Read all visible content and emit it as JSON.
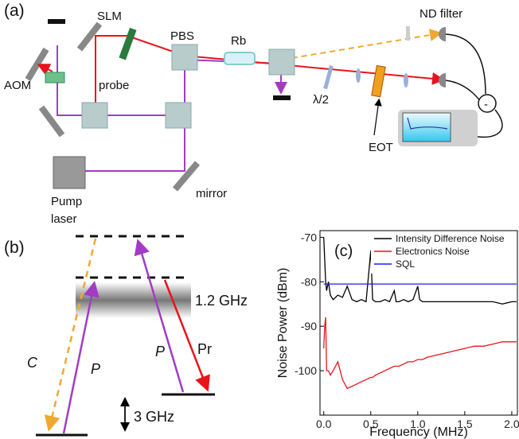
{
  "panel_a": {
    "tag": "(a)",
    "slm": "SLM",
    "pbs": "PBS",
    "rb": "Rb",
    "nd_filter": "ND filter",
    "aom": "AOM",
    "probe": "probe",
    "half_wave": "λ/2",
    "eot": "EOT",
    "pump": "Pump",
    "laser": "laser",
    "mirror": "mirror",
    "minus": "-"
  },
  "panel_b": {
    "tag": "(b)",
    "splitting": "1.2 GHz",
    "conjugate": "C",
    "pump_1": "P",
    "pump_2": "P",
    "probe": "Pr",
    "gap": "3 GHz"
  },
  "chart_data": {
    "type": "line",
    "annotation": "(c)",
    "x_label": "Frequency (MHz)",
    "y_label": "Noise Power (dBm)",
    "xlim": [
      -0.04,
      2.06
    ],
    "ylim": [
      -110,
      -68.5
    ],
    "xticks": [
      {
        "value": 0,
        "label": "0.0"
      },
      {
        "value": 0.5,
        "label": "0.5"
      },
      {
        "value": 1,
        "label": "1.0"
      },
      {
        "value": 1.5,
        "label": "1.5"
      },
      {
        "value": 2,
        "label": "2.0"
      }
    ],
    "yticks": [
      -70,
      -80,
      -90,
      -100
    ],
    "legend": "upper right",
    "x": [
      0,
      0.01,
      0.02,
      0.03,
      0.05,
      0.07,
      0.1,
      0.15,
      0.2,
      0.25,
      0.3,
      0.35,
      0.4,
      0.45,
      0.5,
      0.52,
      0.55,
      0.6,
      0.65,
      0.7,
      0.75,
      0.77,
      0.8,
      0.85,
      0.9,
      0.95,
      1.0,
      1.02,
      1.05,
      1.1,
      1.2,
      1.3,
      1.4,
      1.5,
      1.6,
      1.7,
      1.8,
      1.9,
      2.0,
      2.05
    ],
    "series": [
      {
        "name": "Intensity Difference Noise",
        "color": "#000000",
        "values": [
          -70,
          -75,
          -80,
          -82,
          -80,
          -83,
          -84,
          -83,
          -83.5,
          -81,
          -84,
          -84.5,
          -84,
          -84.5,
          -73,
          -84,
          -84.5,
          -84.5,
          -84,
          -84.5,
          -82,
          -84.5,
          -84.5,
          -84,
          -84.5,
          -84,
          -81,
          -84,
          -84.5,
          -84.5,
          -84.5,
          -84.5,
          -84.5,
          -84.5,
          -84.5,
          -84.5,
          -84.5,
          -85,
          -84.5,
          -84.5
        ]
      },
      {
        "name": "Electronics Noise",
        "color": "#e8141b",
        "values": [
          -95,
          -90,
          -88,
          -100,
          -100,
          -101,
          -100,
          -98,
          -102,
          -104,
          -103.5,
          -103,
          -102.5,
          -102,
          -101.5,
          -101.5,
          -101,
          -100.5,
          -100,
          -99.5,
          -99,
          -99,
          -99,
          -98.5,
          -98,
          -98,
          -97.5,
          -97.5,
          -97.5,
          -97,
          -96.5,
          -96,
          -95.5,
          -95,
          -94.5,
          -94.5,
          -94,
          -93.5,
          -93.5,
          -93.5
        ]
      },
      {
        "name": "SQL",
        "color": "#1a1aff",
        "x": [
          0,
          2.05
        ],
        "values": [
          -80.5,
          -80.5
        ]
      }
    ]
  }
}
